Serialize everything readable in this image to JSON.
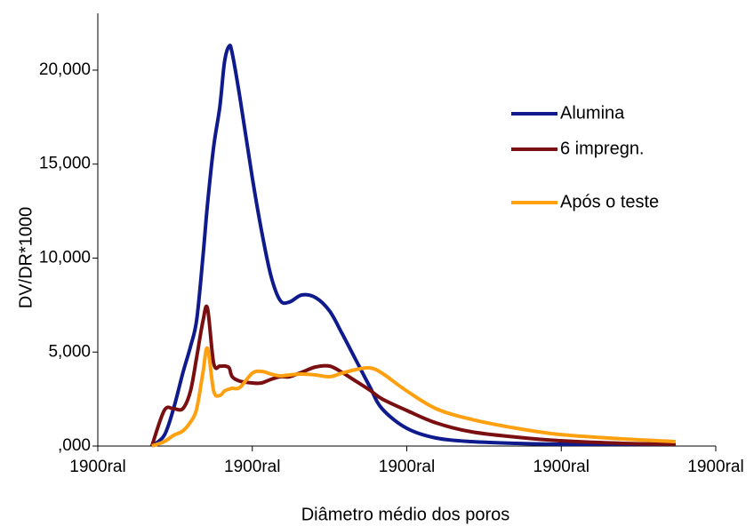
{
  "chart_data": {
    "type": "line",
    "y_label": "DV/DR*1000",
    "x_label": "Diâmetro médio dos poros",
    "x": [
      0.35,
      0.43,
      0.49,
      0.55,
      0.6,
      0.64,
      0.68,
      0.71,
      0.75,
      0.79,
      0.82,
      0.85,
      0.87,
      0.92,
      1.0,
      1.06,
      1.12,
      1.18,
      1.24,
      1.32,
      1.41,
      1.5,
      1.58,
      1.67,
      1.76,
      1.84,
      2.0,
      2.19,
      2.42,
      2.71,
      2.99,
      3.4,
      3.74
    ],
    "series": [
      {
        "name": "Alumina",
        "color": "#0f1a8c",
        "values": [
          0,
          567,
          1986,
          3877,
          5295,
          6714,
          10024,
          12860,
          15934,
          18061,
          20425,
          21276,
          20898,
          18534,
          14279,
          11442,
          9078,
          7754,
          7660,
          8038,
          7896,
          7187,
          6005,
          4586,
          3168,
          1986,
          945,
          425,
          236,
          142,
          95,
          95,
          95
        ]
      },
      {
        "name": "6 impregn.",
        "color": "#7a0f12",
        "values": [
          0,
          1891,
          1986,
          1986,
          2931,
          4728,
          6619,
          7328,
          4397,
          4255,
          4255,
          4161,
          3688,
          3452,
          3357,
          3357,
          3546,
          3688,
          3688,
          3925,
          4208,
          4255,
          3925,
          3452,
          2979,
          2506,
          1891,
          1229,
          756,
          473,
          284,
          142,
          95
        ]
      },
      {
        "name": "Após o teste",
        "color": "#ffa010",
        "values": [
          0,
          236,
          567,
          804,
          1277,
          1986,
          3877,
          5200,
          2931,
          2695,
          2931,
          3026,
          3073,
          3121,
          3877,
          3972,
          3830,
          3735,
          3783,
          3830,
          3783,
          3688,
          3877,
          4066,
          4161,
          3877,
          2931,
          1986,
          1418,
          945,
          615,
          378,
          236
        ]
      }
    ],
    "xlim": [
      0,
      4
    ],
    "xticks": [
      {
        "value": 0,
        "label": "1900ral"
      },
      {
        "value": 1,
        "label": "1900ral"
      },
      {
        "value": 2,
        "label": "1900ral"
      },
      {
        "value": 3,
        "label": "1900ral"
      },
      {
        "value": 4,
        "label": "1900ral"
      }
    ],
    "ylim": [
      0,
      23000
    ],
    "yticks": [
      {
        "value": 0,
        "label": ",000"
      },
      {
        "value": 5000,
        "label": "5,000"
      },
      {
        "value": 10000,
        "label": "10,000"
      },
      {
        "value": 15000,
        "label": "15,000"
      },
      {
        "value": 20000,
        "label": "20,000"
      }
    ]
  }
}
